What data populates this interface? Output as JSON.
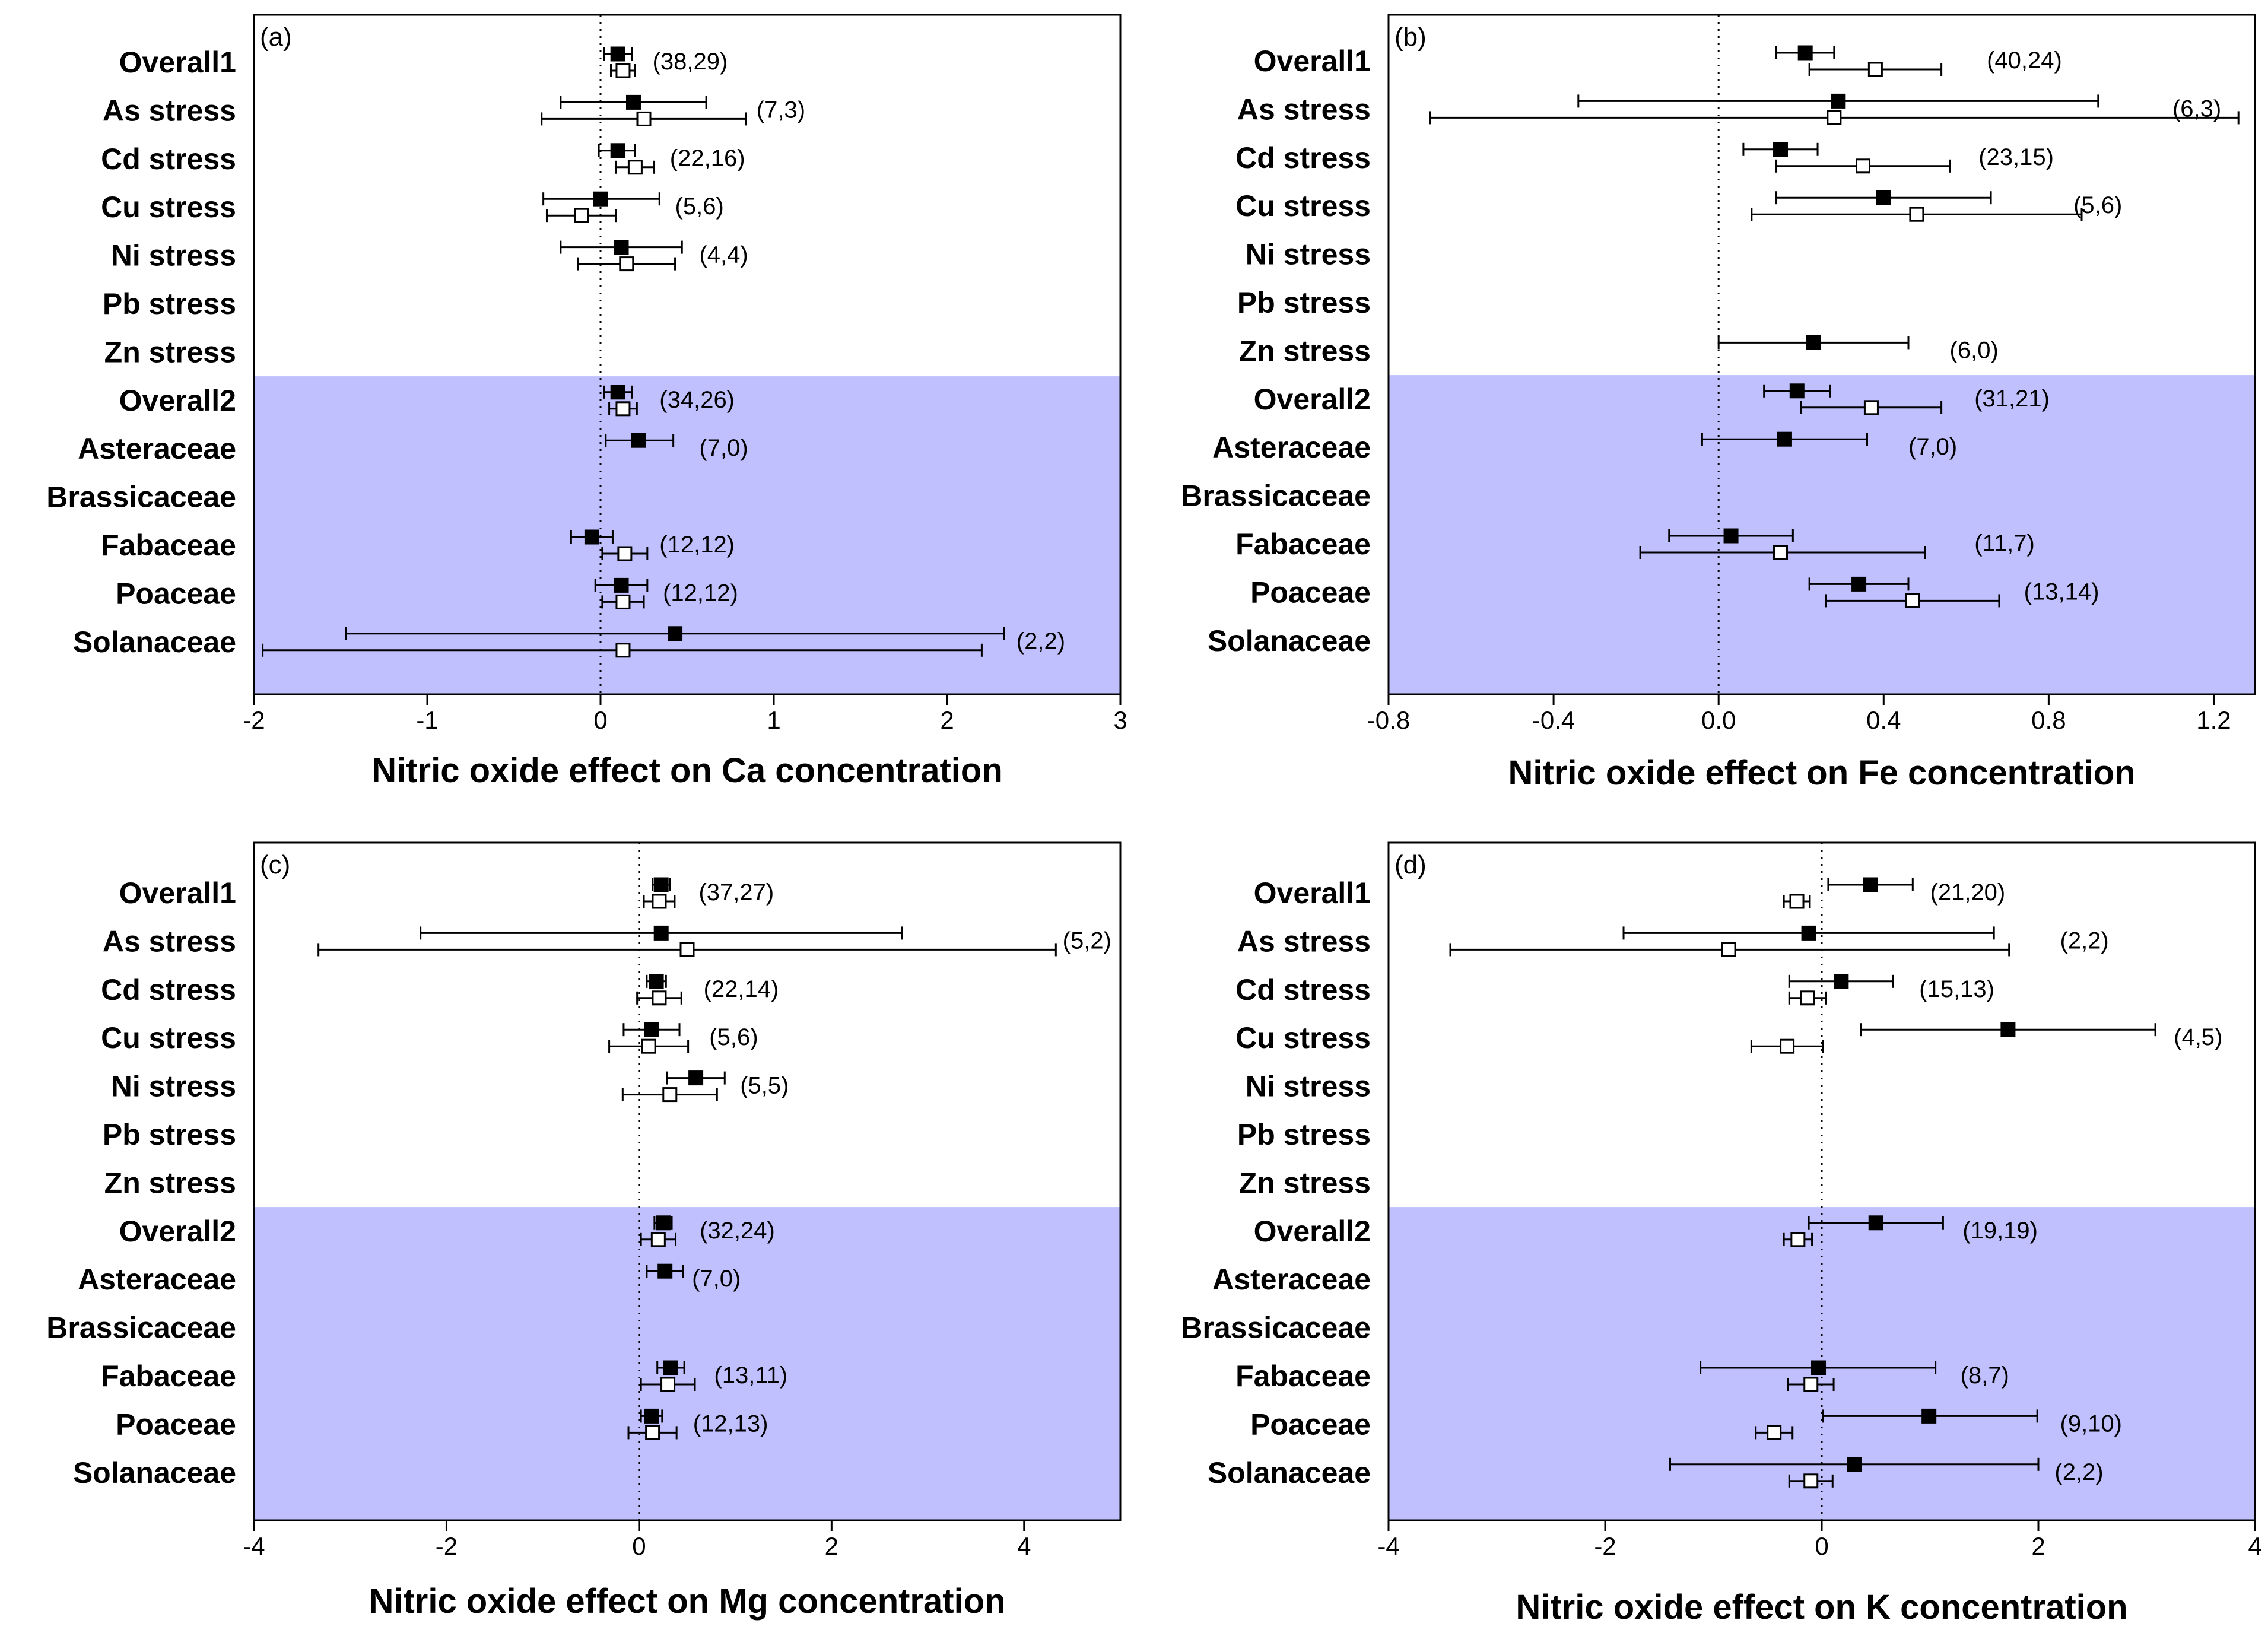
{
  "chart_data": [
    {
      "type": "forest",
      "panel_label": "(a)",
      "xlabel": "Nitric oxide effect on Ca concentration",
      "xlim": [
        -2,
        3
      ],
      "xticks": [
        "-2",
        "-1",
        "0",
        "1",
        "2",
        "3"
      ],
      "xtick_values": [
        -2,
        -1,
        0,
        1,
        2,
        3
      ],
      "ref_line": 0,
      "shaded_from_category": "Overall2",
      "shade_color": "#c0c0ff",
      "categories": [
        "Overall1",
        "As stress",
        "Cd stress",
        "Cu stress",
        "Ni stress",
        "Pb stress",
        "Zn stress",
        "Overall2",
        "Asteraceae",
        "Brassicaceae",
        "Fabaceae",
        "Poaceae",
        "Solanaceae"
      ],
      "series": [
        {
          "marker": "filled-square",
          "points": [
            {
              "category": "Overall1",
              "mean": 0.1,
              "lo": 0.02,
              "hi": 0.18
            },
            {
              "category": "As stress",
              "mean": 0.19,
              "lo": -0.23,
              "hi": 0.61
            },
            {
              "category": "Cd stress",
              "mean": 0.1,
              "lo": -0.01,
              "hi": 0.2
            },
            {
              "category": "Cu stress",
              "mean": 0.0,
              "lo": -0.33,
              "hi": 0.34
            },
            {
              "category": "Ni stress",
              "mean": 0.12,
              "lo": -0.23,
              "hi": 0.47
            },
            {
              "category": "Overall2",
              "mean": 0.1,
              "lo": 0.02,
              "hi": 0.18
            },
            {
              "category": "Asteraceae",
              "mean": 0.22,
              "lo": 0.03,
              "hi": 0.42
            },
            {
              "category": "Fabaceae",
              "mean": -0.05,
              "lo": -0.17,
              "hi": 0.07
            },
            {
              "category": "Poaceae",
              "mean": 0.12,
              "lo": -0.03,
              "hi": 0.27
            },
            {
              "category": "Solanaceae",
              "mean": 0.43,
              "lo": -1.47,
              "hi": 2.33
            }
          ]
        },
        {
          "marker": "open-square",
          "points": [
            {
              "category": "Overall1",
              "mean": 0.13,
              "lo": 0.06,
              "hi": 0.2
            },
            {
              "category": "As stress",
              "mean": 0.25,
              "lo": -0.34,
              "hi": 0.84
            },
            {
              "category": "Cd stress",
              "mean": 0.2,
              "lo": 0.09,
              "hi": 0.31
            },
            {
              "category": "Cu stress",
              "mean": -0.11,
              "lo": -0.31,
              "hi": 0.09
            },
            {
              "category": "Ni stress",
              "mean": 0.15,
              "lo": -0.13,
              "hi": 0.43
            },
            {
              "category": "Overall2",
              "mean": 0.13,
              "lo": 0.05,
              "hi": 0.21
            },
            {
              "category": "Fabaceae",
              "mean": 0.14,
              "lo": 0.01,
              "hi": 0.27
            },
            {
              "category": "Poaceae",
              "mean": 0.13,
              "lo": 0.01,
              "hi": 0.25
            },
            {
              "category": "Solanaceae",
              "mean": 0.13,
              "lo": -1.95,
              "hi": 2.2
            }
          ]
        }
      ],
      "sample_labels": [
        {
          "category": "Overall1",
          "text": "(38,29)",
          "x": 0.3
        },
        {
          "category": "As stress",
          "text": "(7,3)",
          "x": 0.9
        },
        {
          "category": "Cd stress",
          "text": "(22,16)",
          "x": 0.4
        },
        {
          "category": "Cu stress",
          "text": "(5,6)",
          "x": 0.43
        },
        {
          "category": "Ni stress",
          "text": "(4,4)",
          "x": 0.57
        },
        {
          "category": "Overall2",
          "text": "(34,26)",
          "x": 0.34
        },
        {
          "category": "Asteraceae",
          "text": "(7,0)",
          "x": 0.57
        },
        {
          "category": "Fabaceae",
          "text": "(12,12)",
          "x": 0.34
        },
        {
          "category": "Poaceae",
          "text": "(12,12)",
          "x": 0.36
        },
        {
          "category": "Solanaceae",
          "text": "(2,2)",
          "x": 2.4
        }
      ]
    },
    {
      "type": "forest",
      "panel_label": "(b)",
      "xlabel": "Nitric oxide effect on Fe concentration",
      "xlim": [
        -0.8,
        1.3
      ],
      "xticks": [
        "-0.8",
        "-0.4",
        "0.0",
        "0.4",
        "0.8",
        "1.2"
      ],
      "xtick_values": [
        -0.8,
        -0.4,
        0.0,
        0.4,
        0.8,
        1.2
      ],
      "ref_line": 0,
      "shaded_from_category": "Overall2",
      "shade_color": "#c0c0ff",
      "categories": [
        "Overall1",
        "As stress",
        "Cd stress",
        "Cu stress",
        "Ni stress",
        "Pb stress",
        "Zn stress",
        "Overall2",
        "Asteraceae",
        "Brassicaceae",
        "Fabaceae",
        "Poaceae",
        "Solanaceae"
      ],
      "series": [
        {
          "marker": "filled-square",
          "points": [
            {
              "category": "Overall1",
              "mean": 0.21,
              "lo": 0.14,
              "hi": 0.28
            },
            {
              "category": "As stress",
              "mean": 0.29,
              "lo": -0.34,
              "hi": 0.92
            },
            {
              "category": "Cd stress",
              "mean": 0.15,
              "lo": 0.06,
              "hi": 0.24
            },
            {
              "category": "Cu stress",
              "mean": 0.4,
              "lo": 0.14,
              "hi": 0.66
            },
            {
              "category": "Zn stress",
              "mean": 0.23,
              "lo": 0.0,
              "hi": 0.46
            },
            {
              "category": "Overall2",
              "mean": 0.19,
              "lo": 0.11,
              "hi": 0.27
            },
            {
              "category": "Asteraceae",
              "mean": 0.16,
              "lo": -0.04,
              "hi": 0.36
            },
            {
              "category": "Fabaceae",
              "mean": 0.03,
              "lo": -0.12,
              "hi": 0.18
            },
            {
              "category": "Poaceae",
              "mean": 0.34,
              "lo": 0.22,
              "hi": 0.46
            }
          ]
        },
        {
          "marker": "open-square",
          "points": [
            {
              "category": "Overall1",
              "mean": 0.38,
              "lo": 0.22,
              "hi": 0.54
            },
            {
              "category": "As stress",
              "mean": 0.28,
              "lo": -0.7,
              "hi": 1.26
            },
            {
              "category": "Cd stress",
              "mean": 0.35,
              "lo": 0.14,
              "hi": 0.56
            },
            {
              "category": "Cu stress",
              "mean": 0.48,
              "lo": 0.08,
              "hi": 0.88
            },
            {
              "category": "Overall2",
              "mean": 0.37,
              "lo": 0.2,
              "hi": 0.54
            },
            {
              "category": "Fabaceae",
              "mean": 0.15,
              "lo": -0.19,
              "hi": 0.5
            },
            {
              "category": "Poaceae",
              "mean": 0.47,
              "lo": 0.26,
              "hi": 0.68
            }
          ]
        }
      ],
      "sample_labels": [
        {
          "category": "Overall1",
          "text": "(40,24)",
          "x": 0.65
        },
        {
          "category": "As stress",
          "text": "(6,3)",
          "x": 1.1
        },
        {
          "category": "Cd stress",
          "text": "(23,15)",
          "x": 0.63
        },
        {
          "category": "Cu stress",
          "text": "(5,6)",
          "x": 0.86
        },
        {
          "category": "Zn stress",
          "text": "(6,0)",
          "x": 0.56
        },
        {
          "category": "Overall2",
          "text": "(31,21)",
          "x": 0.62
        },
        {
          "category": "Asteraceae",
          "text": "(7,0)",
          "x": 0.46
        },
        {
          "category": "Fabaceae",
          "text": "(11,7)",
          "x": 0.62
        },
        {
          "category": "Poaceae",
          "text": "(13,14)",
          "x": 0.74
        }
      ]
    },
    {
      "type": "forest",
      "panel_label": "(c)",
      "xlabel": "Nitric oxide effect on Mg concentration",
      "xlim": [
        -4,
        5
      ],
      "xticks": [
        "-4",
        "-2",
        "0",
        "2",
        "4"
      ],
      "xtick_values": [
        -4,
        -2,
        0,
        2,
        4
      ],
      "ref_line": 0,
      "shaded_from_category": "Overall2",
      "shade_color": "#c0c0ff",
      "categories": [
        "Overall1",
        "As stress",
        "Cd stress",
        "Cu stress",
        "Ni stress",
        "Pb stress",
        "Zn stress",
        "Overall2",
        "Asteraceae",
        "Brassicaceae",
        "Fabaceae",
        "Poaceae",
        "Solanaceae"
      ],
      "series": [
        {
          "marker": "filled-square",
          "points": [
            {
              "category": "Overall1",
              "mean": 0.23,
              "lo": 0.14,
              "hi": 0.32
            },
            {
              "category": "As stress",
              "mean": 0.23,
              "lo": -2.27,
              "hi": 2.73
            },
            {
              "category": "Cd stress",
              "mean": 0.18,
              "lo": 0.08,
              "hi": 0.28
            },
            {
              "category": "Cu stress",
              "mean": 0.13,
              "lo": -0.16,
              "hi": 0.42
            },
            {
              "category": "Ni stress",
              "mean": 0.59,
              "lo": 0.29,
              "hi": 0.89
            },
            {
              "category": "Overall2",
              "mean": 0.25,
              "lo": 0.16,
              "hi": 0.34
            },
            {
              "category": "Asteraceae",
              "mean": 0.27,
              "lo": 0.08,
              "hi": 0.46
            },
            {
              "category": "Fabaceae",
              "mean": 0.33,
              "lo": 0.19,
              "hi": 0.47
            },
            {
              "category": "Poaceae",
              "mean": 0.13,
              "lo": 0.02,
              "hi": 0.24
            }
          ]
        },
        {
          "marker": "open-square",
          "points": [
            {
              "category": "Overall1",
              "mean": 0.21,
              "lo": 0.05,
              "hi": 0.37
            },
            {
              "category": "As stress",
              "mean": 0.5,
              "lo": -3.33,
              "hi": 4.33
            },
            {
              "category": "Cd stress",
              "mean": 0.21,
              "lo": -0.02,
              "hi": 0.44
            },
            {
              "category": "Cu stress",
              "mean": 0.1,
              "lo": -0.31,
              "hi": 0.51
            },
            {
              "category": "Ni stress",
              "mean": 0.32,
              "lo": -0.17,
              "hi": 0.81
            },
            {
              "category": "Overall2",
              "mean": 0.2,
              "lo": 0.02,
              "hi": 0.38
            },
            {
              "category": "Fabaceae",
              "mean": 0.3,
              "lo": 0.02,
              "hi": 0.58
            },
            {
              "category": "Poaceae",
              "mean": 0.14,
              "lo": -0.11,
              "hi": 0.39
            }
          ]
        }
      ],
      "sample_labels": [
        {
          "category": "Overall1",
          "text": "(37,27)",
          "x": 0.62
        },
        {
          "category": "As stress",
          "text": "(5,2)",
          "x": 4.4
        },
        {
          "category": "Cd stress",
          "text": "(22,14)",
          "x": 0.67
        },
        {
          "category": "Cu stress",
          "text": "(5,6)",
          "x": 0.73
        },
        {
          "category": "Ni stress",
          "text": "(5,5)",
          "x": 1.05
        },
        {
          "category": "Overall2",
          "text": "(32,24)",
          "x": 0.63
        },
        {
          "category": "Asteraceae",
          "text": "(7,0)",
          "x": 0.55
        },
        {
          "category": "Fabaceae",
          "text": "(13,11)",
          "x": 0.78
        },
        {
          "category": "Poaceae",
          "text": "(12,13)",
          "x": 0.56
        }
      ]
    },
    {
      "type": "forest",
      "panel_label": "(d)",
      "xlabel": "Nitric oxide effect on K concentration",
      "xlim": [
        -4,
        4
      ],
      "xticks": [
        "-4",
        "-2",
        "0",
        "2",
        "4"
      ],
      "xtick_values": [
        -4,
        -2,
        0,
        2,
        4
      ],
      "ref_line": 0,
      "shaded_from_category": "Overall2",
      "shade_color": "#c0c0ff",
      "categories": [
        "Overall1",
        "As stress",
        "Cd stress",
        "Cu stress",
        "Ni stress",
        "Pb stress",
        "Zn stress",
        "Overall2",
        "Asteraceae",
        "Brassicaceae",
        "Fabaceae",
        "Poaceae",
        "Solanaceae"
      ],
      "series": [
        {
          "marker": "filled-square",
          "points": [
            {
              "category": "Overall1",
              "mean": 0.45,
              "lo": 0.06,
              "hi": 0.84
            },
            {
              "category": "As stress",
              "mean": -0.12,
              "lo": -1.83,
              "hi": 1.59
            },
            {
              "category": "Cd stress",
              "mean": 0.18,
              "lo": -0.3,
              "hi": 0.66
            },
            {
              "category": "Cu stress",
              "mean": 1.72,
              "lo": 0.36,
              "hi": 3.08
            },
            {
              "category": "Overall2",
              "mean": 0.5,
              "lo": -0.12,
              "hi": 1.12
            },
            {
              "category": "Fabaceae",
              "mean": -0.03,
              "lo": -1.12,
              "hi": 1.05
            },
            {
              "category": "Poaceae",
              "mean": 0.99,
              "lo": 0.01,
              "hi": 1.99
            },
            {
              "category": "Solanaceae",
              "mean": 0.3,
              "lo": -1.4,
              "hi": 2.0
            }
          ]
        },
        {
          "marker": "open-square",
          "points": [
            {
              "category": "Overall1",
              "mean": -0.23,
              "lo": -0.35,
              "hi": -0.11
            },
            {
              "category": "As stress",
              "mean": -0.86,
              "lo": -3.43,
              "hi": 1.73
            },
            {
              "category": "Cd stress",
              "mean": -0.13,
              "lo": -0.3,
              "hi": 0.04
            },
            {
              "category": "Cu stress",
              "mean": -0.32,
              "lo": -0.65,
              "hi": 0.01
            },
            {
              "category": "Overall2",
              "mean": -0.22,
              "lo": -0.35,
              "hi": -0.09
            },
            {
              "category": "Fabaceae",
              "mean": -0.1,
              "lo": -0.31,
              "hi": 0.11
            },
            {
              "category": "Poaceae",
              "mean": -0.44,
              "lo": -0.61,
              "hi": -0.27
            },
            {
              "category": "Solanaceae",
              "mean": -0.1,
              "lo": -0.3,
              "hi": 0.1
            }
          ]
        }
      ],
      "sample_labels": [
        {
          "category": "Overall1",
          "text": "(21,20)",
          "x": 1.0
        },
        {
          "category": "As stress",
          "text": "(2,2)",
          "x": 2.2
        },
        {
          "category": "Cd stress",
          "text": "(15,13)",
          "x": 0.9
        },
        {
          "category": "Cu stress",
          "text": "(4,5)",
          "x": 3.25
        },
        {
          "category": "Overall2",
          "text": "(19,19)",
          "x": 1.3
        },
        {
          "category": "Fabaceae",
          "text": "(8,7)",
          "x": 1.28
        },
        {
          "category": "Poaceae",
          "text": "(9,10)",
          "x": 2.2
        },
        {
          "category": "Solanaceae",
          "text": "(2,2)",
          "x": 2.15
        }
      ]
    }
  ]
}
